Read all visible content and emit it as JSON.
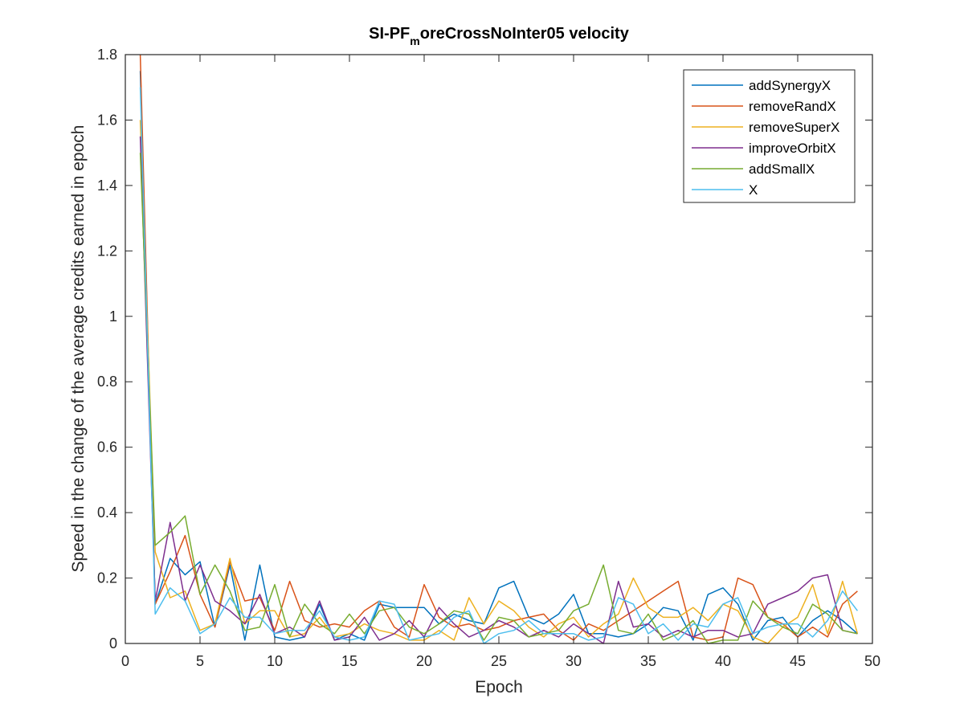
{
  "chart_data": {
    "type": "line",
    "title": "SI-PF",
    "title_sub": "m",
    "title_rest": "oreCrossNoInter05 velocity",
    "xlabel": "Epoch",
    "ylabel": "Speed in the change of the average credits earned in epoch",
    "xlim": [
      0,
      50
    ],
    "ylim": [
      0,
      1.8
    ],
    "xticks": [
      0,
      5,
      10,
      15,
      20,
      25,
      30,
      35,
      40,
      45,
      50
    ],
    "yticks": [
      0,
      0.2,
      0.4,
      0.6,
      0.8,
      1,
      1.2,
      1.4,
      1.6,
      1.8
    ],
    "grid": false,
    "legend_position": "top-right",
    "x": [
      1,
      2,
      3,
      4,
      5,
      6,
      7,
      8,
      9,
      10,
      11,
      12,
      13,
      14,
      15,
      16,
      17,
      18,
      19,
      20,
      21,
      22,
      23,
      24,
      25,
      26,
      27,
      28,
      29,
      30,
      31,
      32,
      33,
      34,
      35,
      36,
      37,
      38,
      39,
      40,
      41,
      42,
      43,
      44,
      45,
      46,
      47,
      48,
      49
    ],
    "series": [
      {
        "name": "addSynergyX",
        "color": "#0072BD",
        "values": [
          1.75,
          0.12,
          0.26,
          0.21,
          0.25,
          0.05,
          0.24,
          0.01,
          0.24,
          0.02,
          0.01,
          0.02,
          0.12,
          0.01,
          0.03,
          0.01,
          0.12,
          0.11,
          0.11,
          0.11,
          0.06,
          0.09,
          0.07,
          0.06,
          0.17,
          0.19,
          0.08,
          0.06,
          0.09,
          0.15,
          0.03,
          0.03,
          0.02,
          0.03,
          0.06,
          0.11,
          0.1,
          0.01,
          0.15,
          0.17,
          0.12,
          0.01,
          0.07,
          0.08,
          0.02,
          0.07,
          0.1,
          0.07,
          0.03
        ]
      },
      {
        "name": "removeRandX",
        "color": "#D95319",
        "values": [
          1.8,
          0.12,
          0.22,
          0.33,
          0.15,
          0.05,
          0.25,
          0.13,
          0.14,
          0.04,
          0.19,
          0.07,
          0.05,
          0.06,
          0.05,
          0.1,
          0.13,
          0.05,
          0.02,
          0.18,
          0.08,
          0.05,
          0.06,
          0.04,
          0.05,
          0.07,
          0.08,
          0.09,
          0.04,
          0.01,
          0.06,
          0.04,
          0.07,
          0.1,
          0.13,
          0.16,
          0.19,
          0.02,
          0.01,
          0.02,
          0.2,
          0.18,
          0.08,
          0.06,
          0.02,
          0.05,
          0.02,
          0.12,
          0.16
        ]
      },
      {
        "name": "removeSuperX",
        "color": "#EDB120",
        "values": [
          1.6,
          0.28,
          0.14,
          0.16,
          0.04,
          0.06,
          0.26,
          0.06,
          0.1,
          0.1,
          0.02,
          0.03,
          0.08,
          0.02,
          0.03,
          0.06,
          0.04,
          0.03,
          0.01,
          0.01,
          0.04,
          0.01,
          0.14,
          0.06,
          0.13,
          0.1,
          0.05,
          0.02,
          0.06,
          0.08,
          0.02,
          0.06,
          0.09,
          0.2,
          0.11,
          0.08,
          0.08,
          0.11,
          0.07,
          0.12,
          0.1,
          0.02,
          0.0,
          0.05,
          0.08,
          0.18,
          0.03,
          0.19,
          0.03
        ]
      },
      {
        "name": "improveOrbitX",
        "color": "#7E2F8E",
        "values": [
          1.55,
          0.13,
          0.37,
          0.13,
          0.24,
          0.13,
          0.1,
          0.06,
          0.15,
          0.03,
          0.05,
          0.02,
          0.13,
          0.01,
          0.02,
          0.08,
          0.01,
          0.03,
          0.07,
          0.02,
          0.11,
          0.06,
          0.02,
          0.04,
          0.07,
          0.05,
          0.02,
          0.04,
          0.02,
          0.06,
          0.03,
          0.0,
          0.19,
          0.05,
          0.06,
          0.02,
          0.04,
          0.02,
          0.04,
          0.04,
          0.02,
          0.03,
          0.12,
          0.14,
          0.16,
          0.2,
          0.21,
          0.04,
          0.03
        ]
      },
      {
        "name": "addSmallX",
        "color": "#77AC30",
        "values": [
          1.5,
          0.3,
          0.34,
          0.39,
          0.15,
          0.24,
          0.16,
          0.04,
          0.05,
          0.18,
          0.02,
          0.12,
          0.06,
          0.03,
          0.09,
          0.03,
          0.1,
          0.11,
          0.05,
          0.03,
          0.06,
          0.1,
          0.09,
          0.01,
          0.08,
          0.07,
          0.02,
          0.03,
          0.04,
          0.1,
          0.12,
          0.24,
          0.04,
          0.03,
          0.09,
          0.01,
          0.03,
          0.07,
          0.0,
          0.01,
          0.01,
          0.13,
          0.08,
          0.05,
          0.03,
          0.12,
          0.09,
          0.04,
          0.03
        ]
      },
      {
        "name": "X",
        "color": "#4DBEEE",
        "values": [
          1.7,
          0.09,
          0.17,
          0.13,
          0.03,
          0.06,
          0.14,
          0.08,
          0.08,
          0.03,
          0.04,
          0.04,
          0.1,
          0.02,
          0.01,
          0.02,
          0.13,
          0.12,
          0.01,
          0.02,
          0.03,
          0.08,
          0.1,
          0.0,
          0.03,
          0.04,
          0.07,
          0.03,
          0.03,
          0.03,
          0.01,
          0.02,
          0.14,
          0.12,
          0.03,
          0.06,
          0.01,
          0.06,
          0.05,
          0.12,
          0.14,
          0.03,
          0.05,
          0.06,
          0.06,
          0.02,
          0.07,
          0.16,
          0.1
        ]
      }
    ]
  }
}
